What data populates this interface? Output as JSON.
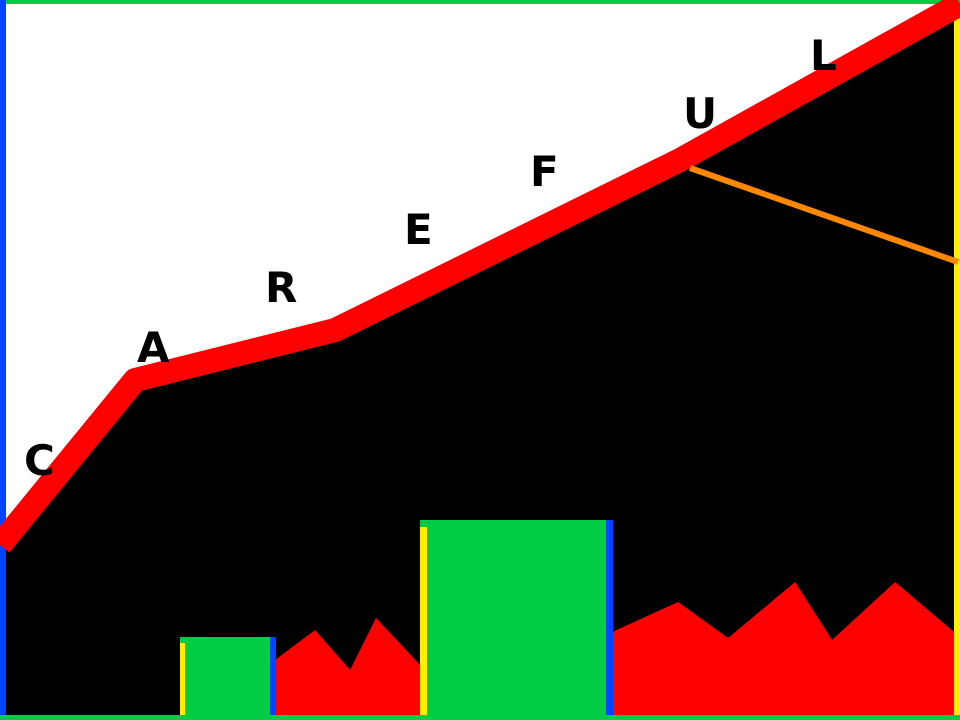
{
  "letters": [
    "C",
    "A",
    "R",
    "E",
    "F",
    "U",
    "L"
  ],
  "colors": {
    "sky": "#ffffff",
    "ground": "#000000",
    "ridge": "#ff0000",
    "platform": "#00cc44",
    "hazard": "#ff0000",
    "edge_blue": "#0044ff",
    "edge_yellow": "#ffee00",
    "laser": "#ff8800",
    "border_top": "#00cc44"
  },
  "objects": {
    "ridge": "red-ridge-line",
    "platforms": [
      "green-block-small",
      "green-block-large"
    ],
    "hazards": [
      "red-spikes-left",
      "red-spikes-right"
    ],
    "beam": "orange-laser-beam"
  }
}
